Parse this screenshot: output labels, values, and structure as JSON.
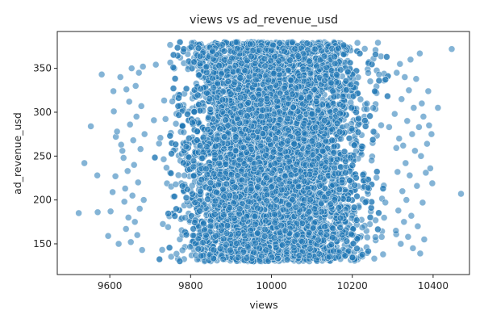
{
  "chart_data": {
    "type": "scatter",
    "title": "views vs ad_revenue_usd",
    "xlabel": "views",
    "ylabel": "ad_revenue_usd",
    "xlim": [
      9470,
      10490
    ],
    "ylim": [
      115,
      392
    ],
    "xticks": [
      9600,
      9800,
      10000,
      10200,
      10400
    ],
    "yticks": [
      150,
      200,
      250,
      300,
      350
    ],
    "grid": false,
    "marker_color": "#1f77b4",
    "edge_color": "#ffffff",
    "marker_alpha": 0.55,
    "dense_region": {
      "x_range": [
        9690,
        10320
      ],
      "y_range": [
        130,
        380
      ],
      "approx_point_count": 9000
    },
    "points": [
      {
        "x": 9523,
        "y": 185
      },
      {
        "x": 9537,
        "y": 242
      },
      {
        "x": 9553,
        "y": 284
      },
      {
        "x": 9569,
        "y": 228
      },
      {
        "x": 9570,
        "y": 186
      },
      {
        "x": 9580,
        "y": 343
      },
      {
        "x": 9596,
        "y": 159
      },
      {
        "x": 9602,
        "y": 187
      },
      {
        "x": 9607,
        "y": 209
      },
      {
        "x": 9609,
        "y": 324
      },
      {
        "x": 9610,
        "y": 301
      },
      {
        "x": 9614,
        "y": 227
      },
      {
        "x": 9615,
        "y": 272
      },
      {
        "x": 9618,
        "y": 278
      },
      {
        "x": 9622,
        "y": 150
      },
      {
        "x": 9626,
        "y": 340
      },
      {
        "x": 9628,
        "y": 263
      },
      {
        "x": 9631,
        "y": 256
      },
      {
        "x": 9634,
        "y": 248
      },
      {
        "x": 9636,
        "y": 198
      },
      {
        "x": 9638,
        "y": 213
      },
      {
        "x": 9640,
        "y": 167
      },
      {
        "x": 9641,
        "y": 326
      },
      {
        "x": 9644,
        "y": 233
      },
      {
        "x": 9646,
        "y": 180
      },
      {
        "x": 9648,
        "y": 312
      },
      {
        "x": 9650,
        "y": 286
      },
      {
        "x": 9652,
        "y": 152
      },
      {
        "x": 9654,
        "y": 350
      },
      {
        "x": 9656,
        "y": 205
      },
      {
        "x": 9658,
        "y": 268
      },
      {
        "x": 9660,
        "y": 240
      },
      {
        "x": 9662,
        "y": 175
      },
      {
        "x": 9664,
        "y": 330
      },
      {
        "x": 9666,
        "y": 295
      },
      {
        "x": 9668,
        "y": 160
      },
      {
        "x": 9670,
        "y": 220
      },
      {
        "x": 9672,
        "y": 345
      },
      {
        "x": 9674,
        "y": 190
      },
      {
        "x": 9676,
        "y": 258
      },
      {
        "x": 9678,
        "y": 307
      },
      {
        "x": 9680,
        "y": 143
      },
      {
        "x": 9682,
        "y": 352
      },
      {
        "x": 9684,
        "y": 200
      },
      {
        "x": 9686,
        "y": 275
      },
      {
        "x": 10305,
        "y": 298
      },
      {
        "x": 10308,
        "y": 165
      },
      {
        "x": 10310,
        "y": 345
      },
      {
        "x": 10312,
        "y": 232
      },
      {
        "x": 10314,
        "y": 188
      },
      {
        "x": 10316,
        "y": 270
      },
      {
        "x": 10318,
        "y": 355
      },
      {
        "x": 10320,
        "y": 150
      },
      {
        "x": 10322,
        "y": 315
      },
      {
        "x": 10324,
        "y": 210
      },
      {
        "x": 10326,
        "y": 262
      },
      {
        "x": 10328,
        "y": 175
      },
      {
        "x": 10330,
        "y": 340
      },
      {
        "x": 10332,
        "y": 242
      },
      {
        "x": 10334,
        "y": 200
      },
      {
        "x": 10336,
        "y": 290
      },
      {
        "x": 10338,
        "y": 158
      },
      {
        "x": 10340,
        "y": 325
      },
      {
        "x": 10342,
        "y": 228
      },
      {
        "x": 10344,
        "y": 360
      },
      {
        "x": 10346,
        "y": 182
      },
      {
        "x": 10348,
        "y": 275
      },
      {
        "x": 10350,
        "y": 145
      },
      {
        "x": 10352,
        "y": 305
      },
      {
        "x": 10355,
        "y": 256
      },
      {
        "x": 10358,
        "y": 338
      },
      {
        "x": 10360,
        "y": 216
      },
      {
        "x": 10362,
        "y": 170
      },
      {
        "x": 10365,
        "y": 283
      },
      {
        "x": 10367,
        "y": 367
      },
      {
        "x": 10368,
        "y": 139
      },
      {
        "x": 10370,
        "y": 250
      },
      {
        "x": 10372,
        "y": 310
      },
      {
        "x": 10374,
        "y": 197
      },
      {
        "x": 10376,
        "y": 295
      },
      {
        "x": 10378,
        "y": 155
      },
      {
        "x": 10382,
        "y": 231
      },
      {
        "x": 10385,
        "y": 264
      },
      {
        "x": 10388,
        "y": 324
      },
      {
        "x": 10390,
        "y": 285
      },
      {
        "x": 10393,
        "y": 236
      },
      {
        "x": 10396,
        "y": 275
      },
      {
        "x": 10398,
        "y": 219
      },
      {
        "x": 10412,
        "y": 305
      },
      {
        "x": 10446,
        "y": 372
      },
      {
        "x": 10469,
        "y": 207
      }
    ]
  }
}
